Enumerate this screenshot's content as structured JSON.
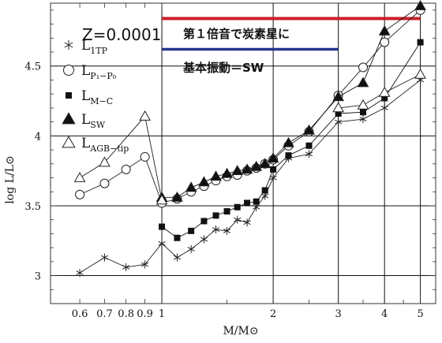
{
  "chart_data": {
    "type": "line",
    "xlabel": "M/M⊙",
    "ylabel": "log L/L⊙",
    "x_scale": "log",
    "xlim": [
      0.5,
      5.5
    ],
    "ylim": [
      2.8,
      4.95
    ],
    "x_ticks": [
      0.6,
      0.7,
      0.8,
      0.9,
      1,
      2,
      3,
      4,
      5
    ],
    "x_tick_labels": [
      "0.6",
      "0.7",
      "0.8",
      "0.9",
      "1",
      "2",
      "3",
      "4",
      "5"
    ],
    "y_ticks": [
      3,
      3.5,
      4,
      4.5
    ],
    "y_tick_labels": [
      "3",
      "3.5",
      "4",
      "4.5"
    ],
    "grid": true,
    "legend_placement": "top-left",
    "z_label": "Z=0.0001",
    "series": [
      {
        "name": "L_1TP",
        "label_main": "L",
        "label_sub": "1TP",
        "marker": "star",
        "color": "#222222",
        "x": [
          0.6,
          0.7,
          0.8,
          0.9,
          1.0,
          1.1,
          1.2,
          1.3,
          1.4,
          1.5,
          1.6,
          1.7,
          1.8,
          1.9,
          2.0,
          2.2,
          2.5,
          3.0,
          3.5,
          4.0,
          5.0
        ],
        "y": [
          3.02,
          3.13,
          3.06,
          3.08,
          3.23,
          3.13,
          3.19,
          3.26,
          3.33,
          3.32,
          3.4,
          3.38,
          3.49,
          3.57,
          3.7,
          3.84,
          3.87,
          4.1,
          4.12,
          4.2,
          4.4
        ]
      },
      {
        "name": "L_P1-P0",
        "label_main": "L",
        "label_sub": "P₁−P₀",
        "marker": "circle",
        "color": "#222222",
        "x": [
          0.6,
          0.7,
          0.8,
          0.9,
          1.0,
          1.1,
          1.2,
          1.3,
          1.4,
          1.5,
          1.6,
          1.7,
          1.8,
          1.9,
          2.0,
          2.2,
          2.5,
          3.0,
          3.5,
          4.0,
          5.0
        ],
        "y": [
          3.58,
          3.66,
          3.76,
          3.85,
          3.52,
          3.55,
          3.6,
          3.64,
          3.68,
          3.71,
          3.72,
          3.75,
          3.77,
          3.8,
          3.83,
          3.93,
          4.03,
          4.29,
          4.49,
          4.67,
          4.9
        ]
      },
      {
        "name": "L_M-C",
        "label_main": "L",
        "label_sub": "M−C",
        "marker": "square",
        "color": "#111111",
        "x": [
          1.0,
          1.1,
          1.2,
          1.3,
          1.4,
          1.5,
          1.6,
          1.7,
          1.8,
          1.9,
          2.0,
          2.2,
          2.5,
          3.0,
          3.5,
          4.0,
          5.0
        ],
        "y": [
          3.35,
          3.27,
          3.32,
          3.39,
          3.43,
          3.46,
          3.49,
          3.52,
          3.53,
          3.61,
          3.76,
          3.86,
          3.93,
          4.16,
          4.17,
          4.27,
          4.67
        ]
      },
      {
        "name": "L_SW",
        "label_main": "L",
        "label_sub": "SW",
        "marker": "triangle-filled",
        "color": "#111111",
        "x": [
          1.0,
          1.1,
          1.2,
          1.3,
          1.4,
          1.5,
          1.6,
          1.7,
          1.8,
          1.9,
          2.0,
          2.2,
          2.5,
          3.0,
          3.5,
          4.0,
          5.0
        ],
        "y": [
          3.56,
          3.56,
          3.63,
          3.67,
          3.71,
          3.73,
          3.75,
          3.76,
          3.78,
          3.8,
          3.84,
          3.95,
          4.04,
          4.28,
          4.38,
          4.75,
          4.93
        ]
      },
      {
        "name": "L_AGB-tip",
        "label_main": "L",
        "label_sub": "AGB−tip",
        "marker": "triangle-open",
        "color": "#222222",
        "x": [
          0.6,
          0.7,
          0.9,
          1.0
        ],
        "y": [
          3.7,
          3.81,
          4.14,
          3.54
        ]
      },
      {
        "name": "L_AGB-tip-high",
        "marker": "triangle-open",
        "color": "#222222",
        "x": [
          3.0,
          3.5,
          4.0,
          5.0
        ],
        "y": [
          4.2,
          4.22,
          4.31,
          4.44
        ]
      }
    ],
    "annotations": [
      {
        "text": "第１倍音で炭素星に",
        "color": "#cc1f2a",
        "x_range": [
          1.0,
          5.0
        ],
        "y": 4.84
      },
      {
        "text": "基本振動＝SW",
        "color": "#27358f",
        "x_range": [
          1.0,
          3.0
        ],
        "y": 4.62
      }
    ]
  }
}
